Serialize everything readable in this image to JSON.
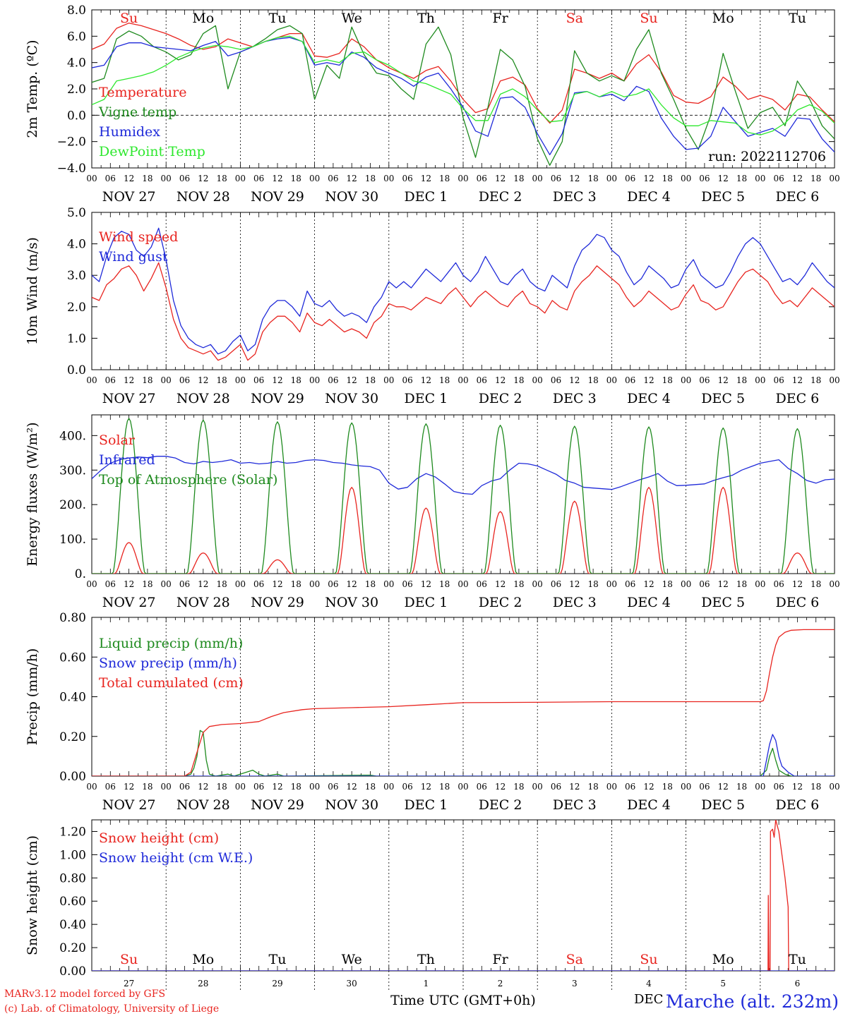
{
  "chart_data": [
    {
      "type": "line",
      "ylabel": "2m Temp. (ºC)",
      "ylim": [
        -4,
        8
      ],
      "yticks": [
        "8.0",
        "6.0",
        "4.0",
        "2.0",
        "0.0",
        "−2.0",
        "−4.0"
      ],
      "ytick_values": [
        8,
        6,
        4,
        2,
        0,
        -2,
        -4
      ],
      "zero_line": true,
      "run_label": "run: 2022112706",
      "dow_labels": [
        "Su",
        "Mo",
        "Tu",
        "We",
        "Th",
        "Fr",
        "Sa",
        "Su",
        "Mo",
        "Tu"
      ],
      "dow_colors": [
        "#e8241f",
        "#000000",
        "#000000",
        "#000000",
        "#000000",
        "#000000",
        "#e8241f",
        "#e8241f",
        "#000000",
        "#000000"
      ],
      "series": [
        {
          "name": "Temperature",
          "color": "#e8241f",
          "values": [
            5,
            5.4,
            6.6,
            7.0,
            6.8,
            6.5,
            6.2,
            5.8,
            5.3,
            5.0,
            5.2,
            5.8,
            5.5,
            5.2,
            5.6,
            5.9,
            6.2,
            6.2,
            4.5,
            4.4,
            4.7,
            5.8,
            5.2,
            4.2,
            3.6,
            3.2,
            2.8,
            3.4,
            3.7,
            2.6,
            1.2,
            0.2,
            0.5,
            2.6,
            2.9,
            2.3,
            0.5,
            -0.6,
            0.4,
            3.5,
            3.2,
            2.8,
            3.2,
            2.6,
            3.9,
            4.6,
            3.3,
            1.5,
            1.0,
            0.9,
            1.4,
            2.9,
            2.2,
            1.2,
            1.5,
            1.2,
            0.4,
            1.6,
            1.4,
            0.4,
            -0.5
          ]
        },
        {
          "name": "Vigne temp",
          "color": "#1e8a1e",
          "values": [
            2.5,
            2.8,
            5.8,
            6.4,
            6.0,
            5.2,
            4.8,
            4.2,
            4.6,
            6.2,
            6.8,
            2.0,
            4.8,
            5.2,
            5.8,
            6.5,
            6.8,
            6.2,
            1.2,
            3.8,
            2.8,
            6.7,
            4.6,
            3.2,
            3.0,
            2.0,
            1.2,
            5.4,
            6.7,
            4.6,
            -0.2,
            -3.2,
            0.6,
            5.0,
            4.2,
            2.2,
            -1.8,
            -3.8,
            -2.0,
            4.9,
            3.2,
            2.6,
            3.0,
            2.6,
            5.0,
            6.5,
            3.2,
            1.2,
            -1.0,
            -2.6,
            0.0,
            4.7,
            1.8,
            -1.0,
            0.2,
            0.6,
            -0.8,
            2.6,
            1.2,
            -0.8,
            -1.8
          ]
        },
        {
          "name": "Humidex",
          "color": "#1f2ad9",
          "values": [
            3.6,
            3.8,
            5.2,
            5.5,
            5.5,
            5.2,
            5.1,
            5.0,
            4.9,
            5.3,
            5.6,
            4.5,
            4.8,
            5.2,
            5.6,
            5.8,
            5.9,
            5.6,
            3.8,
            4.0,
            3.8,
            4.8,
            4.4,
            3.6,
            3.2,
            2.8,
            2.2,
            2.9,
            3.2,
            2.0,
            0.6,
            -1.2,
            -1.6,
            1.3,
            1.4,
            0.6,
            -1.4,
            -3.0,
            -1.4,
            1.7,
            1.8,
            1.4,
            1.6,
            1.1,
            2.2,
            1.8,
            -0.2,
            -1.6,
            -2.6,
            -2.5,
            -1.6,
            0.6,
            -0.5,
            -1.6,
            -1.3,
            -1.0,
            -1.6,
            -0.2,
            -0.3,
            -1.8,
            -2.8
          ]
        },
        {
          "name": "DewPoint Temp",
          "color": "#2ee82e",
          "values": [
            0.8,
            1.2,
            2.6,
            2.8,
            3.0,
            3.3,
            3.8,
            4.4,
            4.8,
            5.1,
            5.3,
            5.2,
            5.0,
            5.2,
            5.6,
            5.9,
            6.0,
            5.6,
            4.0,
            4.2,
            4.0,
            4.7,
            4.8,
            4.2,
            3.8,
            3.2,
            2.6,
            2.4,
            2.0,
            1.6,
            0.5,
            -0.4,
            -0.4,
            1.6,
            2.0,
            1.4,
            0.4,
            -0.5,
            -0.4,
            1.6,
            1.8,
            1.4,
            1.8,
            1.4,
            1.6,
            2.0,
            0.8,
            -0.2,
            -0.8,
            -0.8,
            -0.4,
            -0.5,
            -0.6,
            -1.3,
            -1.5,
            -1.2,
            -0.6,
            0.4,
            0.8,
            0.3,
            -0.6
          ]
        }
      ]
    },
    {
      "type": "line",
      "ylabel": "10m Wind (m/s)",
      "ylim": [
        0,
        5
      ],
      "yticks": [
        "5.0",
        "4.0",
        "3.0",
        "2.0",
        "1.0",
        "0.0"
      ],
      "ytick_values": [
        5,
        4,
        3,
        2,
        1,
        0
      ],
      "series": [
        {
          "name": "Wind speed",
          "color": "#e8241f",
          "values": [
            2.3,
            2.2,
            2.7,
            2.9,
            3.2,
            3.3,
            3.0,
            2.5,
            2.9,
            3.4,
            2.6,
            1.6,
            1.0,
            0.7,
            0.6,
            0.5,
            0.6,
            0.3,
            0.4,
            0.6,
            0.8,
            0.3,
            0.5,
            1.2,
            1.5,
            1.7,
            1.7,
            1.5,
            1.2,
            1.8,
            1.5,
            1.4,
            1.6,
            1.4,
            1.2,
            1.3,
            1.2,
            1.0,
            1.5,
            1.7,
            2.1,
            2.0,
            2.0,
            1.9,
            2.1,
            2.3,
            2.2,
            2.1,
            2.4,
            2.6,
            2.3,
            2.0,
            2.3,
            2.5,
            2.3,
            2.1,
            2.0,
            2.3,
            2.5,
            2.1,
            2.0,
            1.8,
            2.2,
            2.0,
            1.9,
            2.5,
            2.8,
            3.0,
            3.3,
            3.1,
            2.9,
            2.7,
            2.3,
            2.0,
            2.2,
            2.5,
            2.3,
            2.1,
            1.9,
            2.0,
            2.4,
            2.7,
            2.2,
            2.1,
            1.9,
            2.0,
            2.4,
            2.8,
            3.1,
            3.2,
            3.0,
            2.8,
            2.4,
            2.1,
            2.2,
            2.0,
            2.3,
            2.6,
            2.4,
            2.2,
            2.0
          ]
        },
        {
          "name": "Wind gust",
          "color": "#1f2ad9",
          "values": [
            3.0,
            2.8,
            3.6,
            4.2,
            4.4,
            4.3,
            3.8,
            3.6,
            3.9,
            4.5,
            3.5,
            2.2,
            1.4,
            1.0,
            0.8,
            0.7,
            0.8,
            0.5,
            0.6,
            0.9,
            1.1,
            0.6,
            0.8,
            1.6,
            2.0,
            2.2,
            2.2,
            2.0,
            1.7,
            2.5,
            2.1,
            2.0,
            2.2,
            1.9,
            1.7,
            1.8,
            1.7,
            1.5,
            2.0,
            2.3,
            2.8,
            2.6,
            2.8,
            2.6,
            2.9,
            3.2,
            3.0,
            2.8,
            3.1,
            3.4,
            3.0,
            2.8,
            3.1,
            3.6,
            3.2,
            2.8,
            2.7,
            3.0,
            3.2,
            2.8,
            2.6,
            2.5,
            3.0,
            2.8,
            2.6,
            3.3,
            3.8,
            4.0,
            4.3,
            4.2,
            3.8,
            3.6,
            3.1,
            2.7,
            2.9,
            3.3,
            3.1,
            2.9,
            2.6,
            2.7,
            3.2,
            3.5,
            3.0,
            2.8,
            2.6,
            2.7,
            3.1,
            3.6,
            4.0,
            4.2,
            4.0,
            3.6,
            3.2,
            2.8,
            2.9,
            2.7,
            3.0,
            3.4,
            3.1,
            2.8,
            2.6
          ]
        }
      ]
    },
    {
      "type": "line",
      "ylabel": "Energy fluxes (W/m²)",
      "ylim": [
        0,
        460
      ],
      "yticks": [
        "400.",
        "300.",
        "200.",
        "100.",
        "0."
      ],
      "ytick_values": [
        400,
        300,
        200,
        100,
        0
      ],
      "series": [
        {
          "name": "Solar",
          "color": "#e8241f",
          "daily_peak": [
            90,
            60,
            40,
            250,
            190,
            180,
            210,
            250,
            250,
            60
          ]
        },
        {
          "name": "Infrared",
          "color": "#1f2ad9",
          "values": [
            275,
            300,
            320,
            330,
            335,
            338,
            336,
            340,
            340,
            335,
            322,
            318,
            325,
            322,
            325,
            330,
            320,
            322,
            318,
            320,
            325,
            320,
            322,
            328,
            330,
            328,
            322,
            320,
            315,
            312,
            310,
            300,
            262,
            245,
            250,
            275,
            290,
            280,
            260,
            238,
            232,
            230,
            255,
            268,
            275,
            300,
            320,
            318,
            312,
            300,
            288,
            270,
            262,
            250,
            248,
            246,
            244,
            252,
            262,
            272,
            280,
            290,
            268,
            255,
            256,
            258,
            260,
            270,
            278,
            285,
            300,
            310,
            320,
            325,
            330,
            305,
            290,
            270,
            262,
            272,
            274
          ]
        },
        {
          "name": "Top of Atmosphere (Solar)",
          "color": "#1e8a1e",
          "daily_peak": [
            450,
            445,
            440,
            437,
            434,
            430,
            427,
            425,
            422,
            420
          ]
        }
      ]
    },
    {
      "type": "line",
      "ylabel": "Precip (mm/h)",
      "ylim": [
        0,
        0.8
      ],
      "yticks": [
        "0.80",
        "0.60",
        "0.40",
        "0.20",
        "0.00"
      ],
      "ytick_values": [
        0.8,
        0.6,
        0.4,
        0.2,
        0
      ],
      "series": [
        {
          "name": "Liquid precip (mm/h)",
          "color": "#1e8a1e",
          "points": [
            [
              0,
              0
            ],
            [
              30,
              0
            ],
            [
              32,
              0.01
            ],
            [
              33,
              0.04
            ],
            [
              34,
              0.1
            ],
            [
              35,
              0.23
            ],
            [
              36,
              0.22
            ],
            [
              37,
              0.08
            ],
            [
              38,
              0.01
            ],
            [
              40,
              0
            ],
            [
              44,
              0.01
            ],
            [
              46,
              0
            ],
            [
              50,
              0.02
            ],
            [
              52,
              0.03
            ],
            [
              54,
              0.01
            ],
            [
              56,
              0
            ],
            [
              60,
              0.01
            ],
            [
              62,
              0
            ],
            [
              90,
              0.005
            ],
            [
              92,
              0
            ],
            [
              216,
              0
            ],
            [
              218,
              0.03
            ],
            [
              219,
              0.1
            ],
            [
              220,
              0.14
            ],
            [
              221,
              0.08
            ],
            [
              222,
              0.03
            ],
            [
              224,
              0.01
            ],
            [
              226,
              0
            ],
            [
              240,
              0
            ]
          ]
        },
        {
          "name": "Snow precip (mm/h)",
          "color": "#1f2ad9",
          "points": [
            [
              0,
              0
            ],
            [
              217,
              0
            ],
            [
              218,
              0.08
            ],
            [
              219,
              0.16
            ],
            [
              220,
              0.21
            ],
            [
              221,
              0.18
            ],
            [
              222,
              0.1
            ],
            [
              223,
              0.05
            ],
            [
              225,
              0.02
            ],
            [
              227,
              0
            ],
            [
              240,
              0
            ]
          ]
        },
        {
          "name": "Total cumulated (cm)",
          "color": "#e8241f",
          "points": [
            [
              0,
              0
            ],
            [
              30,
              0
            ],
            [
              32,
              0.02
            ],
            [
              34,
              0.12
            ],
            [
              36,
              0.22
            ],
            [
              38,
              0.25
            ],
            [
              42,
              0.26
            ],
            [
              48,
              0.265
            ],
            [
              54,
              0.275
            ],
            [
              58,
              0.3
            ],
            [
              62,
              0.32
            ],
            [
              68,
              0.335
            ],
            [
              72,
              0.34
            ],
            [
              84,
              0.345
            ],
            [
              96,
              0.35
            ],
            [
              108,
              0.36
            ],
            [
              120,
              0.37
            ],
            [
              144,
              0.372
            ],
            [
              168,
              0.375
            ],
            [
              204,
              0.375
            ],
            [
              216,
              0.375
            ],
            [
              217,
              0.38
            ],
            [
              218,
              0.43
            ],
            [
              219,
              0.52
            ],
            [
              220,
              0.6
            ],
            [
              221,
              0.66
            ],
            [
              222,
              0.7
            ],
            [
              224,
              0.725
            ],
            [
              226,
              0.735
            ],
            [
              230,
              0.738
            ],
            [
              240,
              0.738
            ]
          ]
        }
      ]
    },
    {
      "type": "line",
      "ylabel": "Snow height (cm)",
      "ylim": [
        0,
        1.3
      ],
      "yticks": [
        "1.20",
        "1.00",
        "0.80",
        "0.60",
        "0.40",
        "0.20",
        "0.00"
      ],
      "ytick_values": [
        1.2,
        1.0,
        0.8,
        0.6,
        0.4,
        0.2,
        0
      ],
      "xticks": [
        "27",
        "28",
        "29",
        "30",
        "1",
        "2",
        "3",
        "4",
        "5",
        "6"
      ],
      "xlabel": "Time UTC (GMT+0h)",
      "series": [
        {
          "name": "Snow height (cm)",
          "color": "#e8241f",
          "points": [
            [
              0,
              0
            ],
            [
              218.5,
              0
            ],
            [
              218.6,
              0.65
            ],
            [
              218.8,
              0
            ],
            [
              219.2,
              0
            ],
            [
              219.3,
              1.2
            ],
            [
              220,
              1.22
            ],
            [
              220.5,
              1.15
            ],
            [
              221,
              1.3
            ],
            [
              222,
              1.2
            ],
            [
              223,
              1.0
            ],
            [
              224,
              0.8
            ],
            [
              225,
              0.55
            ],
            [
              225.2,
              0
            ],
            [
              240,
              0
            ]
          ]
        },
        {
          "name": "Snow height (cm W.E.)",
          "color": "#1f2ad9",
          "points": [
            [
              0,
              0
            ],
            [
              240,
              0
            ]
          ]
        }
      ]
    }
  ],
  "shared_x": {
    "hour_ticks": [
      "00",
      "06",
      "12",
      "18"
    ],
    "date_labels": [
      "NOV 27",
      "NOV 28",
      "NOV 29",
      "NOV 30",
      "DEC  1",
      "DEC  2",
      "DEC  3",
      "DEC  4",
      "DEC  5",
      "DEC  6"
    ],
    "last_tick": "00",
    "days": 10
  },
  "footer": {
    "model": "MARv3.12 model forced by GFS",
    "credit": "(c) Lab. of Climatology, University of Liege",
    "station": "Marche (alt. 232m)",
    "station_prefix": "DEC"
  }
}
